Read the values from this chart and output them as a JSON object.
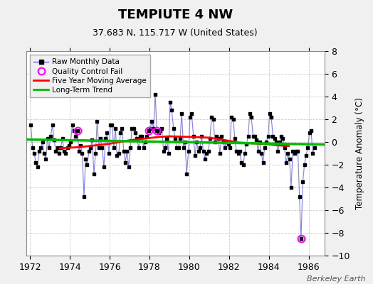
{
  "title": "TEMPIUTE 4 NW",
  "subtitle": "37.683 N, 115.717 W (United States)",
  "ylabel": "Temperature Anomaly (°C)",
  "credit": "Berkeley Earth",
  "xlim": [
    1971.8,
    1986.8
  ],
  "ylim": [
    -10,
    8
  ],
  "yticks": [
    -10,
    -8,
    -6,
    -4,
    -2,
    0,
    2,
    4,
    6,
    8
  ],
  "xticks": [
    1972,
    1974,
    1976,
    1978,
    1980,
    1982,
    1984,
    1986
  ],
  "background_color": "#f0f0f0",
  "plot_bg_color": "#ffffff",
  "raw_line_color": "#6666ff",
  "raw_marker_color": "#000000",
  "ma_color": "#ff0000",
  "trend_color": "#00bb00",
  "qc_color": "#ff00ff",
  "raw_data": {
    "times": [
      1972.04,
      1972.12,
      1972.21,
      1972.29,
      1972.37,
      1972.46,
      1972.54,
      1972.62,
      1972.71,
      1972.79,
      1972.87,
      1972.96,
      1973.04,
      1973.12,
      1973.21,
      1973.29,
      1973.37,
      1973.46,
      1973.54,
      1973.62,
      1973.71,
      1973.79,
      1973.87,
      1973.96,
      1974.04,
      1974.12,
      1974.21,
      1974.29,
      1974.37,
      1974.46,
      1974.54,
      1974.62,
      1974.71,
      1974.79,
      1974.87,
      1974.96,
      1975.04,
      1975.12,
      1975.21,
      1975.29,
      1975.37,
      1975.46,
      1975.54,
      1975.62,
      1975.71,
      1975.79,
      1975.87,
      1975.96,
      1976.04,
      1976.12,
      1976.21,
      1976.29,
      1976.37,
      1976.46,
      1976.54,
      1976.62,
      1976.71,
      1976.79,
      1976.87,
      1976.96,
      1977.04,
      1977.12,
      1977.21,
      1977.29,
      1977.37,
      1977.46,
      1977.54,
      1977.62,
      1977.71,
      1977.79,
      1977.87,
      1977.96,
      1978.04,
      1978.12,
      1978.21,
      1978.29,
      1978.37,
      1978.46,
      1978.54,
      1978.62,
      1978.71,
      1978.79,
      1978.87,
      1978.96,
      1979.04,
      1979.12,
      1979.21,
      1979.29,
      1979.37,
      1979.46,
      1979.54,
      1979.62,
      1979.71,
      1979.79,
      1979.87,
      1979.96,
      1980.04,
      1980.12,
      1980.21,
      1980.29,
      1980.37,
      1980.46,
      1980.54,
      1980.62,
      1980.71,
      1980.79,
      1980.87,
      1980.96,
      1981.04,
      1981.12,
      1981.21,
      1981.29,
      1981.37,
      1981.46,
      1981.54,
      1981.62,
      1981.71,
      1981.79,
      1981.87,
      1981.96,
      1982.04,
      1982.12,
      1982.21,
      1982.29,
      1982.37,
      1982.46,
      1982.54,
      1982.62,
      1982.71,
      1982.79,
      1982.87,
      1982.96,
      1983.04,
      1983.12,
      1983.21,
      1983.29,
      1983.37,
      1983.46,
      1983.54,
      1983.62,
      1983.71,
      1983.79,
      1983.87,
      1983.96,
      1984.04,
      1984.12,
      1984.21,
      1984.29,
      1984.37,
      1984.46,
      1984.54,
      1984.62,
      1984.71,
      1984.79,
      1984.87,
      1984.96,
      1985.04,
      1985.12,
      1985.21,
      1985.29,
      1985.37,
      1985.46,
      1985.54,
      1985.62,
      1985.71,
      1985.79,
      1985.87,
      1985.96,
      1986.04,
      1986.12,
      1986.21,
      1986.29
    ],
    "values": [
      1.5,
      -0.5,
      -1.0,
      -1.8,
      -2.2,
      -0.8,
      -0.5,
      0.0,
      -1.0,
      -1.5,
      0.3,
      -0.5,
      0.5,
      1.5,
      0.2,
      -0.8,
      -0.5,
      -1.0,
      -0.5,
      0.3,
      -0.8,
      -1.0,
      -0.5,
      -0.3,
      0.0,
      1.5,
      1.0,
      0.5,
      1.0,
      -0.8,
      -0.3,
      -1.0,
      -4.8,
      -1.5,
      -2.0,
      -0.8,
      -0.5,
      0.2,
      -2.8,
      -1.0,
      1.8,
      -0.5,
      0.3,
      -0.5,
      -2.2,
      0.3,
      0.8,
      -1.0,
      1.5,
      1.5,
      -0.5,
      1.2,
      -1.2,
      -1.0,
      0.8,
      1.2,
      -0.8,
      -1.8,
      -0.8,
      -2.2,
      -0.5,
      1.2,
      1.2,
      0.8,
      0.3,
      -0.5,
      0.5,
      0.5,
      -0.5,
      0.0,
      0.5,
      1.0,
      1.2,
      1.8,
      1.2,
      4.2,
      1.0,
      0.8,
      1.0,
      1.2,
      -0.8,
      -0.5,
      0.3,
      -1.0,
      3.5,
      2.8,
      1.2,
      0.3,
      -0.5,
      -0.5,
      0.3,
      2.5,
      -0.5,
      0.0,
      -2.8,
      -0.8,
      2.2,
      2.5,
      0.5,
      -1.2,
      0.0,
      -0.8,
      -0.5,
      0.5,
      -0.8,
      -1.5,
      -1.0,
      -0.8,
      0.3,
      2.2,
      2.0,
      0.0,
      0.5,
      0.3,
      -1.0,
      0.5,
      0.0,
      -0.5,
      0.0,
      -0.2,
      -0.5,
      2.2,
      2.0,
      0.3,
      -0.8,
      -1.0,
      -0.8,
      -1.8,
      -2.0,
      -1.0,
      -0.2,
      0.5,
      2.5,
      2.2,
      0.5,
      0.5,
      0.2,
      -0.8,
      0.0,
      -1.0,
      -1.8,
      -0.5,
      0.0,
      0.5,
      2.5,
      2.2,
      0.5,
      0.3,
      0.0,
      -0.8,
      0.0,
      0.5,
      0.3,
      -0.5,
      -1.8,
      -1.0,
      -1.5,
      -4.0,
      -0.8,
      -1.0,
      -0.8,
      -0.8,
      -4.8,
      -8.5,
      -3.5,
      -2.0,
      -1.2,
      -0.5,
      0.8,
      1.0,
      -1.0,
      -0.5
    ]
  },
  "qc_points": {
    "times": [
      1974.37,
      1977.96,
      1978.37,
      1985.62
    ],
    "values": [
      1.0,
      1.0,
      1.0,
      -8.5
    ]
  },
  "moving_avg": {
    "times": [
      1973.5,
      1974.0,
      1974.5,
      1975.0,
      1975.5,
      1976.0,
      1976.5,
      1977.0,
      1977.5,
      1978.0,
      1978.5,
      1979.0,
      1979.5,
      1980.0,
      1980.5,
      1981.0,
      1981.5,
      1982.0,
      1982.5,
      1983.0,
      1983.5,
      1984.0,
      1984.5,
      1985.0
    ],
    "values": [
      -0.55,
      -0.5,
      -0.45,
      -0.35,
      -0.25,
      -0.15,
      0.0,
      0.15,
      0.25,
      0.35,
      0.45,
      0.5,
      0.48,
      0.45,
      0.42,
      0.38,
      0.25,
      0.1,
      -0.05,
      -0.1,
      -0.15,
      -0.2,
      -0.3,
      -0.35
    ]
  },
  "trend": {
    "times": [
      1971.8,
      1986.8
    ],
    "values": [
      0.22,
      -0.22
    ]
  }
}
